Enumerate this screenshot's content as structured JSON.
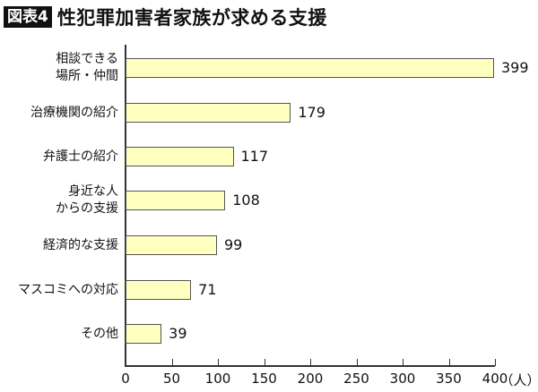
{
  "header": {
    "badge": "図表4",
    "title": "性犯罪加害者家族が求める支援"
  },
  "chart_data": {
    "type": "bar",
    "orientation": "horizontal",
    "title": "性犯罪加害者家族が求める支援",
    "categories": [
      "相談できる場所・仲間",
      "治療機関の紹介",
      "弁護士の紹介",
      "身近な人からの支援",
      "経済的な支援",
      "マスコミへの対応",
      "その他"
    ],
    "category_lines": [
      [
        "相談できる",
        "場所・仲間"
      ],
      [
        "治療機関の紹介"
      ],
      [
        "弁護士の紹介"
      ],
      [
        "身近な人",
        "からの支援"
      ],
      [
        "経済的な支援"
      ],
      [
        "マスコミへの対応"
      ],
      [
        "その他"
      ]
    ],
    "values": [
      399,
      179,
      117,
      108,
      99,
      71,
      39
    ],
    "value_labels": [
      "399",
      "179",
      "117",
      "108",
      "99",
      "71",
      "39"
    ],
    "xlabel": "（人）",
    "ylabel": "",
    "xlim": [
      0,
      400
    ],
    "xticks": [
      "0",
      "50",
      "100",
      "150",
      "200",
      "250",
      "300",
      "350",
      "400"
    ],
    "bar_color": "#ffffc0",
    "grid": false,
    "legend": null
  }
}
